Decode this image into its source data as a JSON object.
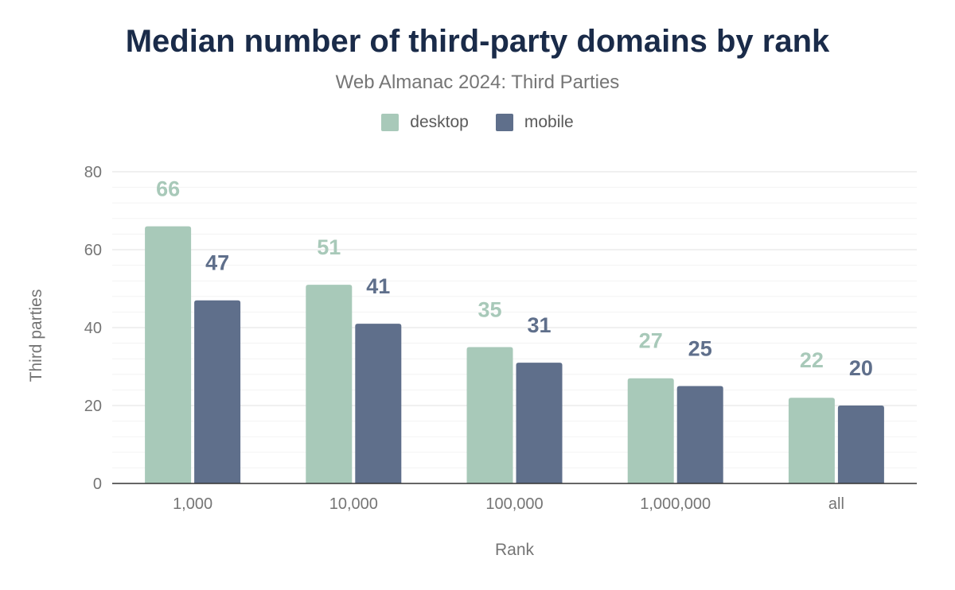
{
  "chart_data": {
    "type": "bar",
    "title": "Median number of third-party domains by rank",
    "subtitle": "Web Almanac 2024: Third Parties",
    "xlabel": "Rank",
    "ylabel": "Third parties",
    "categories": [
      "1,000",
      "10,000",
      "100,000",
      "1,000,000",
      "all"
    ],
    "series": [
      {
        "name": "desktop",
        "color": "#a8c9b9",
        "values": [
          66,
          51,
          35,
          27,
          22
        ]
      },
      {
        "name": "mobile",
        "color": "#5f6f8b",
        "values": [
          47,
          41,
          31,
          25,
          20
        ]
      }
    ],
    "ylim": [
      0,
      80
    ],
    "yticks": [
      "0",
      "20",
      "40",
      "60",
      "80"
    ],
    "grid": true,
    "legend_position": "top-center",
    "data_labels": true
  }
}
